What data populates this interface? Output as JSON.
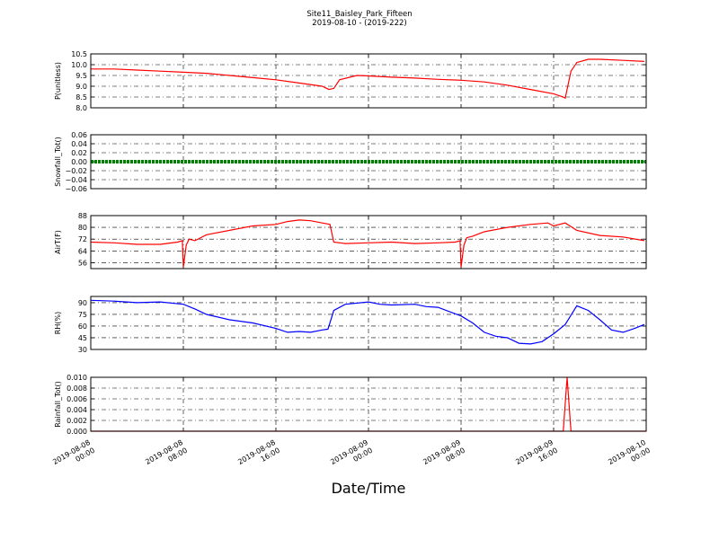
{
  "chart_data": {
    "title": "Site11_Baisley_Park_Fifteen",
    "subtitle": "2019-08-10 - (2019-222)",
    "xlabel": "Date/Time",
    "type": "line",
    "grid": true,
    "x_range": [
      "2019-08-08 00:00",
      "2019-08-10 00:00"
    ],
    "x_ticks": [
      {
        "value": "2019-08-08 00:00",
        "line1": "2019-08-08",
        "line2": "00:00"
      },
      {
        "value": "2019-08-08 08:00",
        "line1": "2019-08-08",
        "line2": "08:00"
      },
      {
        "value": "2019-08-08 16:00",
        "line1": "2019-08-08",
        "line2": "16:00"
      },
      {
        "value": "2019-08-09 00:00",
        "line1": "2019-08-09",
        "line2": "00:00"
      },
      {
        "value": "2019-08-09 08:00",
        "line1": "2019-08-09",
        "line2": "08:00"
      },
      {
        "value": "2019-08-09 16:00",
        "line1": "2019-08-09",
        "line2": "16:00"
      },
      {
        "value": "2019-08-10 00:00",
        "line1": "2019-08-10",
        "line2": "00:00"
      }
    ],
    "panels": [
      {
        "ylabel": "P(unitless)",
        "ylim": [
          8.0,
          10.5
        ],
        "yticks": [
          "8.0",
          "8.5",
          "9.0",
          "9.5",
          "10.0",
          "10.5"
        ],
        "series": [
          {
            "color": "#ff0000",
            "x": [
              "2019-08-08 00:00",
              "2019-08-08 02:00",
              "2019-08-08 04:00",
              "2019-08-08 06:00",
              "2019-08-08 08:00",
              "2019-08-08 10:00",
              "2019-08-08 12:00",
              "2019-08-08 14:00",
              "2019-08-08 16:00",
              "2019-08-08 18:00",
              "2019-08-08 20:00",
              "2019-08-08 20:35",
              "2019-08-08 21:00",
              "2019-08-08 21:30",
              "2019-08-08 23:00",
              "2019-08-09 00:00",
              "2019-08-09 02:00",
              "2019-08-09 04:00",
              "2019-08-09 06:00",
              "2019-08-09 08:00",
              "2019-08-09 10:00",
              "2019-08-09 12:00",
              "2019-08-09 14:00",
              "2019-08-09 16:00",
              "2019-08-09 16:50",
              "2019-08-09 17:00",
              "2019-08-09 17:30",
              "2019-08-09 18:00",
              "2019-08-09 19:00",
              "2019-08-09 20:00",
              "2019-08-09 22:00",
              "2019-08-09 23:50"
            ],
            "y": [
              9.8,
              9.8,
              9.75,
              9.7,
              9.65,
              9.6,
              9.5,
              9.4,
              9.3,
              9.15,
              9.0,
              8.85,
              8.9,
              9.3,
              9.5,
              9.48,
              9.42,
              9.38,
              9.32,
              9.28,
              9.2,
              9.05,
              8.85,
              8.65,
              8.5,
              8.45,
              9.7,
              10.1,
              10.25,
              10.25,
              10.2,
              10.15
            ]
          }
        ]
      },
      {
        "ylabel": "Snowfall_Tot()",
        "ylim": [
          -0.06,
          0.06
        ],
        "yticks": [
          "−0.06",
          "−0.04",
          "−0.02",
          "0.00",
          "0.02",
          "0.04",
          "0.06"
        ],
        "series": [
          {
            "color": "#008000",
            "marker": "dot",
            "x": [
              "2019-08-08 00:00",
              "2019-08-10 00:00"
            ],
            "y": [
              0.0,
              0.0
            ]
          }
        ]
      },
      {
        "ylabel": "AirT(F)",
        "ylim": [
          52,
          88
        ],
        "yticks": [
          "56",
          "64",
          "72",
          "80",
          "88"
        ],
        "series": [
          {
            "color": "#ff0000",
            "x": [
              "2019-08-08 00:00",
              "2019-08-08 02:00",
              "2019-08-08 04:00",
              "2019-08-08 06:00",
              "2019-08-08 07:30",
              "2019-08-08 07:55",
              "2019-08-08 08:00",
              "2019-08-08 08:15",
              "2019-08-08 08:30",
              "2019-08-08 09:00",
              "2019-08-08 10:00",
              "2019-08-08 12:00",
              "2019-08-08 14:00",
              "2019-08-08 16:00",
              "2019-08-08 17:00",
              "2019-08-08 18:00",
              "2019-08-08 19:00",
              "2019-08-08 20:00",
              "2019-08-08 20:40",
              "2019-08-08 21:00",
              "2019-08-08 22:00",
              "2019-08-09 00:00",
              "2019-08-09 02:00",
              "2019-08-09 04:00",
              "2019-08-09 06:00",
              "2019-08-09 07:30",
              "2019-08-09 07:55",
              "2019-08-09 08:00",
              "2019-08-09 08:15",
              "2019-08-09 08:30",
              "2019-08-09 09:00",
              "2019-08-09 10:00",
              "2019-08-09 12:00",
              "2019-08-09 14:00",
              "2019-08-09 15:30",
              "2019-08-09 16:00",
              "2019-08-09 17:00",
              "2019-08-09 18:00",
              "2019-08-09 20:00",
              "2019-08-09 22:00",
              "2019-08-09 23:50"
            ],
            "y": [
              70,
              69.5,
              68.5,
              68.5,
              70,
              71,
              53,
              68,
              72,
              71,
              75,
              78,
              81,
              82,
              84,
              85,
              84.5,
              83,
              82,
              70,
              69,
              69.5,
              70,
              69,
              69.5,
              70,
              71,
              53,
              68,
              73,
              74,
              77,
              80,
              82,
              83,
              81,
              83,
              78,
              74.5,
              73.5,
              71
            ]
          }
        ]
      },
      {
        "ylabel": "RH(%)",
        "ylim": [
          30,
          98
        ],
        "yticks": [
          "30",
          "45",
          "60",
          "75",
          "90"
        ],
        "series": [
          {
            "color": "#0000ff",
            "x": [
              "2019-08-08 00:00",
              "2019-08-08 02:00",
              "2019-08-08 04:00",
              "2019-08-08 06:00",
              "2019-08-08 08:00",
              "2019-08-08 09:00",
              "2019-08-08 10:00",
              "2019-08-08 12:00",
              "2019-08-08 14:00",
              "2019-08-08 16:00",
              "2019-08-08 17:00",
              "2019-08-08 18:00",
              "2019-08-08 19:00",
              "2019-08-08 20:00",
              "2019-08-08 20:30",
              "2019-08-08 21:00",
              "2019-08-08 22:00",
              "2019-08-09 00:00",
              "2019-08-09 01:00",
              "2019-08-09 02:00",
              "2019-08-09 04:00",
              "2019-08-09 05:00",
              "2019-08-09 06:00",
              "2019-08-09 08:00",
              "2019-08-09 09:00",
              "2019-08-09 10:00",
              "2019-08-09 11:00",
              "2019-08-09 12:00",
              "2019-08-09 13:00",
              "2019-08-09 14:00",
              "2019-08-09 15:00",
              "2019-08-09 16:00",
              "2019-08-09 17:00",
              "2019-08-09 18:00",
              "2019-08-09 19:00",
              "2019-08-09 20:00",
              "2019-08-09 21:00",
              "2019-08-09 22:00",
              "2019-08-09 23:00",
              "2019-08-09 23:50"
            ],
            "y": [
              93,
              92,
              90,
              91,
              88,
              82,
              75,
              68,
              64,
              57,
              52,
              53,
              52,
              55,
              56,
              80,
              88,
              91,
              88,
              87,
              88,
              85,
              84,
              73,
              64,
              52,
              47,
              45,
              38,
              37,
              40,
              50,
              62,
              86,
              80,
              68,
              55,
              52,
              57,
              62
            ]
          }
        ]
      },
      {
        "ylabel": "Rainfall_Tot()",
        "ylim": [
          0,
          0.01
        ],
        "yticks": [
          "0.000",
          "0.002",
          "0.004",
          "0.006",
          "0.008",
          "0.010"
        ],
        "series": [
          {
            "color": "#ff0000",
            "x": [
              "2019-08-08 00:00",
              "2019-08-09 16:50",
              "2019-08-09 17:10",
              "2019-08-09 17:30",
              "2019-08-10 00:00"
            ],
            "y": [
              0,
              0,
              0.01,
              0,
              0
            ]
          }
        ]
      }
    ]
  }
}
